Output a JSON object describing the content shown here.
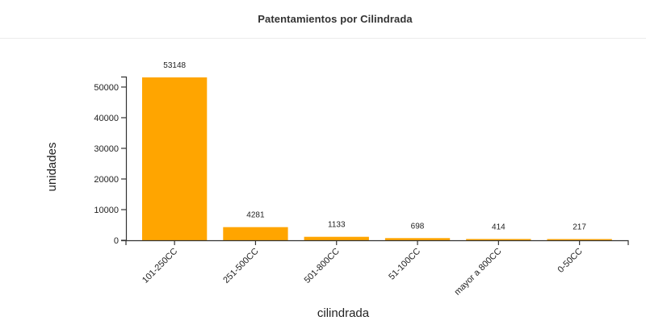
{
  "header": {
    "title": "Patentamientos por Cilindrada"
  },
  "colors": {
    "bar": "#FFA500",
    "axis": "#333333",
    "text": "#222222"
  },
  "chart_data": {
    "type": "bar",
    "title": "Patentamientos por Cilindrada",
    "xlabel": "cilindrada",
    "ylabel": "unidades",
    "categories": [
      "101-250CC",
      "251-500CC",
      "501-800CC",
      "51-100CC",
      "mayor a 800CC",
      "0-50CC"
    ],
    "values": [
      53148,
      4281,
      1133,
      698,
      414,
      217
    ],
    "yticks": [
      0,
      10000,
      20000,
      30000,
      40000,
      50000
    ],
    "ylim": [
      0,
      53148
    ],
    "grid": false,
    "legend": null,
    "data_labels": true,
    "x_tick_rotation": -45
  }
}
